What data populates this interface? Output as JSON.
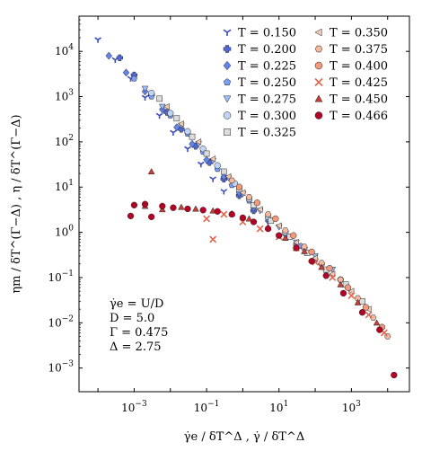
{
  "chart_data": {
    "type": "scatter",
    "xlabel": "γ̇e / δT^Δ , γ̇ / δT^Δ",
    "ylabel": "ηm / δT^(Γ−Δ) , η / δT^(Γ−Δ)",
    "x_scale": "log",
    "y_scale": "log",
    "xlim": [
      3e-05,
      40000.0
    ],
    "ylim": [
      0.0003,
      60000.0
    ],
    "x_ticks": [
      "10^−3",
      "10^−1",
      "10^1",
      "10^3"
    ],
    "y_ticks": [
      "10^−3",
      "10^−2",
      "10^−1",
      "10^0",
      "10^1",
      "10^2",
      "10^3",
      "10^4"
    ],
    "legend_position": "top-right",
    "annotation_lines": [
      "γ̇e = U/D",
      "D = 5.0",
      "Γ = 0.475",
      "Δ = 2.75"
    ],
    "series": [
      {
        "name": "T = 0.150",
        "color": "#3b4cc0",
        "marker": "tri_down",
        "points": [
          [
            0.0001,
            18000
          ],
          [
            0.0003,
            6500
          ],
          [
            0.0008,
            2500
          ],
          [
            0.002,
            950
          ],
          [
            0.005,
            380
          ],
          [
            0.012,
            160
          ],
          [
            0.03,
            70
          ],
          [
            0.07,
            32
          ],
          [
            0.15,
            15
          ],
          [
            0.3,
            8.0
          ]
        ]
      },
      {
        "name": "T = 0.200",
        "color": "#4f69d9",
        "marker": "plus_filled",
        "points": [
          [
            0.0004,
            7200
          ],
          [
            0.001,
            3000
          ],
          [
            0.003,
            1100
          ],
          [
            0.008,
            450
          ],
          [
            0.02,
            190
          ],
          [
            0.05,
            80
          ],
          [
            0.12,
            35
          ],
          [
            0.3,
            15
          ],
          [
            0.8,
            6.5
          ],
          [
            2,
            3.0
          ]
        ]
      },
      {
        "name": "T = 0.225",
        "color": "#6384eb",
        "marker": "diamond",
        "points": [
          [
            0.0002,
            8000
          ],
          [
            0.0006,
            3400
          ],
          [
            0.002,
            1300
          ],
          [
            0.006,
            520
          ],
          [
            0.015,
            210
          ],
          [
            0.04,
            90
          ],
          [
            0.1,
            40
          ],
          [
            0.3,
            17
          ],
          [
            0.8,
            7.5
          ],
          [
            2,
            3.5
          ],
          [
            5,
            1.8
          ],
          [
            15,
            0.9
          ],
          [
            30,
            0.55
          ]
        ]
      },
      {
        "name": "T = 0.250",
        "color": "#7b9ff9",
        "marker": "pentagon",
        "points": [
          [
            0.001,
            2500
          ],
          [
            0.003,
            1000
          ],
          [
            0.01,
            380
          ],
          [
            0.03,
            150
          ],
          [
            0.08,
            60
          ],
          [
            0.2,
            25
          ],
          [
            0.5,
            11
          ],
          [
            1.5,
            5
          ],
          [
            5,
            2
          ],
          [
            15,
            1.0
          ],
          [
            40,
            0.5
          ],
          [
            100,
            0.25
          ]
        ]
      },
      {
        "name": "T = 0.275",
        "color": "#9ebeff",
        "marker": "tri_down_filled",
        "points": [
          [
            0.002,
            1500
          ],
          [
            0.006,
            600
          ],
          [
            0.02,
            230
          ],
          [
            0.06,
            90
          ],
          [
            0.15,
            38
          ],
          [
            0.4,
            16
          ],
          [
            1,
            7
          ],
          [
            3,
            3
          ],
          [
            10,
            1.3
          ],
          [
            30,
            0.6
          ],
          [
            100,
            0.3
          ],
          [
            300,
            0.15
          ]
        ]
      },
      {
        "name": "T = 0.300",
        "color": "#c0d4f5",
        "marker": "circle",
        "points": [
          [
            0.003,
            1200
          ],
          [
            0.01,
            430
          ],
          [
            0.03,
            170
          ],
          [
            0.08,
            70
          ],
          [
            0.2,
            30
          ],
          [
            0.6,
            12
          ],
          [
            1.5,
            5.5
          ],
          [
            5,
            2.2
          ],
          [
            15,
            1.0
          ],
          [
            50,
            0.45
          ],
          [
            150,
            0.2
          ],
          [
            500,
            0.09
          ]
        ]
      },
      {
        "name": "T = 0.325",
        "color": "#dddddd",
        "marker": "square",
        "points": [
          [
            0.005,
            900
          ],
          [
            0.015,
            330
          ],
          [
            0.04,
            130
          ],
          [
            0.1,
            55
          ],
          [
            0.3,
            22
          ],
          [
            0.8,
            9
          ],
          [
            2,
            4
          ],
          [
            6,
            1.8
          ],
          [
            20,
            0.8
          ],
          [
            60,
            0.35
          ],
          [
            200,
            0.15
          ],
          [
            700,
            0.07
          ],
          [
            2000,
            0.03
          ]
        ]
      },
      {
        "name": "T = 0.350",
        "color": "#f2cbb7",
        "marker": "tri_left",
        "points": [
          [
            0.008,
            600
          ],
          [
            0.02,
            250
          ],
          [
            0.06,
            100
          ],
          [
            0.15,
            42
          ],
          [
            0.4,
            17
          ],
          [
            1,
            7.5
          ],
          [
            3,
            3.2
          ],
          [
            10,
            1.4
          ],
          [
            30,
            0.6
          ],
          [
            100,
            0.27
          ],
          [
            300,
            0.12
          ],
          [
            1000,
            0.05
          ],
          [
            3000,
            0.02
          ]
        ]
      },
      {
        "name": "T = 0.375",
        "color": "#f7b89c",
        "marker": "hexagon",
        "points": [
          [
            0.5,
            14
          ],
          [
            1.5,
            6
          ],
          [
            5,
            2.5
          ],
          [
            15,
            1.1
          ],
          [
            50,
            0.48
          ],
          [
            150,
            0.21
          ],
          [
            500,
            0.09
          ],
          [
            1500,
            0.035
          ],
          [
            4000,
            0.013
          ],
          [
            10000,
            0.005
          ]
        ]
      },
      {
        "name": "T = 0.400",
        "color": "#f39979",
        "marker": "circle",
        "points": [
          [
            0.8,
            10
          ],
          [
            2.5,
            4.5
          ],
          [
            8,
            2
          ],
          [
            25,
            0.85
          ],
          [
            80,
            0.37
          ],
          [
            250,
            0.16
          ],
          [
            800,
            0.06
          ],
          [
            2500,
            0.022
          ],
          [
            7000,
            0.008
          ]
        ]
      },
      {
        "name": "T = 0.425",
        "color": "#e0654f",
        "marker": "x",
        "points": [
          [
            0.1,
            2.0
          ],
          [
            0.15,
            0.7
          ],
          [
            0.3,
            2.5
          ],
          [
            1,
            1.7
          ],
          [
            3,
            1.2
          ],
          [
            10,
            0.8
          ],
          [
            30,
            0.45
          ],
          [
            100,
            0.22
          ],
          [
            300,
            0.1
          ],
          [
            1000,
            0.04
          ],
          [
            3000,
            0.015
          ],
          [
            8000,
            0.006
          ]
        ]
      },
      {
        "name": "T = 0.450",
        "color": "#c83d36",
        "marker": "triangle_up",
        "points": [
          [
            0.003,
            22
          ],
          [
            0.002,
            3.8
          ],
          [
            0.006,
            3.2
          ],
          [
            0.02,
            3.6
          ],
          [
            0.05,
            3.3
          ],
          [
            0.15,
            3.0
          ],
          [
            0.5,
            2.6
          ],
          [
            1.5,
            2.0
          ],
          [
            5,
            1.3
          ],
          [
            15,
            0.75
          ],
          [
            50,
            0.38
          ],
          [
            150,
            0.17
          ],
          [
            500,
            0.07
          ],
          [
            1500,
            0.028
          ],
          [
            5000,
            0.01
          ]
        ]
      },
      {
        "name": "T = 0.466",
        "color": "#b40426",
        "marker": "circle",
        "points": [
          [
            0.0008,
            2.3
          ],
          [
            0.001,
            4.0
          ],
          [
            0.002,
            4.2
          ],
          [
            0.003,
            2.2
          ],
          [
            0.006,
            3.8
          ],
          [
            0.012,
            3.5
          ],
          [
            0.03,
            3.3
          ],
          [
            0.08,
            3.1
          ],
          [
            0.2,
            2.9
          ],
          [
            0.5,
            2.5
          ],
          [
            1,
            2.1
          ],
          [
            2,
            1.7
          ],
          [
            5,
            1.2
          ],
          [
            10,
            0.85
          ],
          [
            30,
            0.45
          ],
          [
            80,
            0.23
          ],
          [
            200,
            0.11
          ],
          [
            600,
            0.045
          ],
          [
            2000,
            0.017
          ],
          [
            6000,
            0.007
          ],
          [
            15000,
            0.0007
          ]
        ]
      }
    ]
  }
}
